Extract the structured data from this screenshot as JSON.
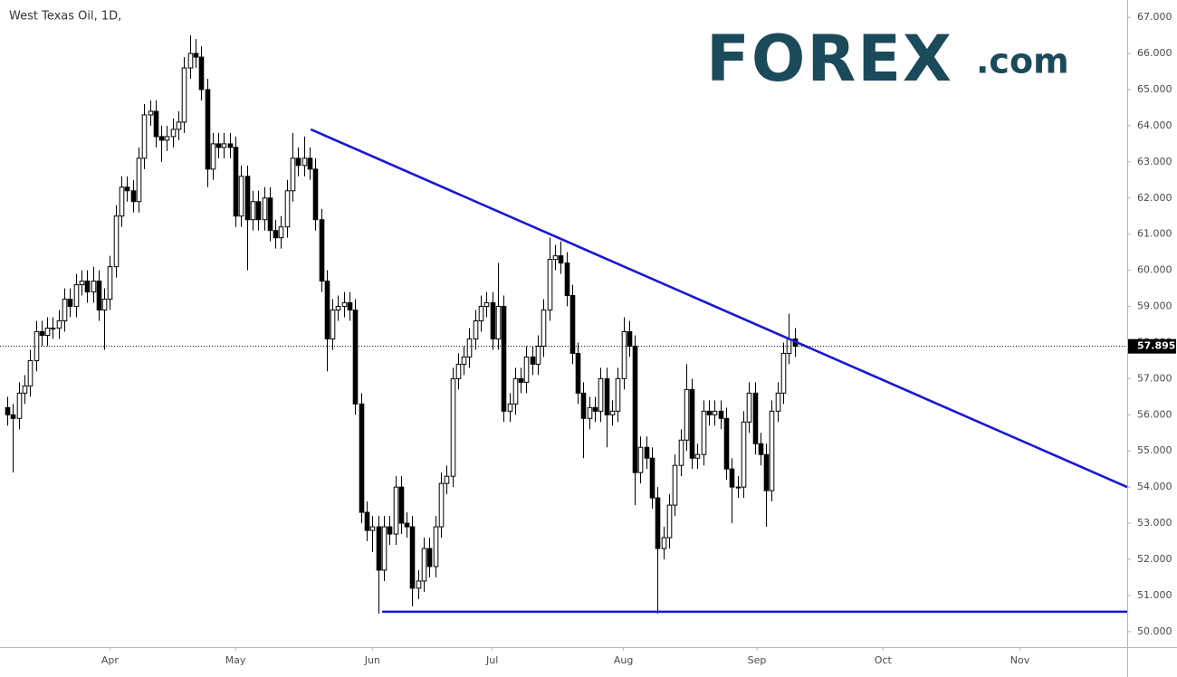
{
  "chart_data": {
    "type": "candlestick",
    "title": "West Texas Oil, 1D,",
    "logo": {
      "text": "FOREX",
      "suffix": ".com"
    },
    "xlim": [
      -1.27,
      196.3
    ],
    "xticks": [
      {
        "value": 18,
        "label": "Apr"
      },
      {
        "value": 40,
        "label": "May"
      },
      {
        "value": 64,
        "label": "Jun"
      },
      {
        "value": 85,
        "label": "Jul"
      },
      {
        "value": 108,
        "label": "Aug"
      },
      {
        "value": 131.4,
        "label": "Sep"
      },
      {
        "value": 153.5,
        "label": "Oct"
      },
      {
        "value": 177.5,
        "label": "Nov"
      }
    ],
    "ylim": [
      49.57,
      67.48
    ],
    "yticks": [
      {
        "value": 50,
        "label": "50.000"
      },
      {
        "value": 51,
        "label": "51.000"
      },
      {
        "value": 52,
        "label": "52.000"
      },
      {
        "value": 53,
        "label": "53.000"
      },
      {
        "value": 54,
        "label": "54.000"
      },
      {
        "value": 55,
        "label": "55.000"
      },
      {
        "value": 56,
        "label": "56.000"
      },
      {
        "value": 57,
        "label": "57.000"
      },
      {
        "value": 58,
        "label": "58.000"
      },
      {
        "value": 59,
        "label": "59.000"
      },
      {
        "value": 60,
        "label": "60.000"
      },
      {
        "value": 61,
        "label": "61.000"
      },
      {
        "value": 62,
        "label": "62.000"
      },
      {
        "value": 63,
        "label": "63.000"
      },
      {
        "value": 64,
        "label": "64.000"
      },
      {
        "value": 65,
        "label": "65.000"
      },
      {
        "value": 66,
        "label": "66.000"
      },
      {
        "value": 67,
        "label": "67.000"
      }
    ],
    "last_price": {
      "value": 57.895,
      "label": "57.895"
    },
    "up_color": "#ffffff",
    "down_color": "#000000",
    "open": [
      56.2,
      56.0,
      55.9,
      56.6,
      56.8,
      57.5,
      58.3,
      58.2,
      58.4,
      58.4,
      58.6,
      59.2,
      59.0,
      59.6,
      59.7,
      59.4,
      59.7,
      58.9,
      59.2,
      60.1,
      61.5,
      62.3,
      62.2,
      61.9,
      63.1,
      64.3,
      64.4,
      63.7,
      63.6,
      63.7,
      63.9,
      64.1,
      65.6,
      66.0,
      65.9,
      65.0,
      62.8,
      63.5,
      63.4,
      63.5,
      63.4,
      61.5,
      62.6,
      61.4,
      61.9,
      61.4,
      62.0,
      61.1,
      60.9,
      61.2,
      62.2,
      63.1,
      62.9,
      63.1,
      62.8,
      61.4,
      59.7,
      58.1,
      58.9,
      59.0,
      59.1,
      58.9,
      56.3,
      53.3,
      52.8,
      52.9,
      51.7,
      52.9,
      52.7,
      54.0,
      53.0,
      52.9,
      51.2,
      51.4,
      52.3,
      51.8,
      52.9,
      54.1,
      54.3,
      57.0,
      57.4,
      57.6,
      58.1,
      58.6,
      59.0,
      59.1,
      58.1,
      59.0,
      56.1,
      56.3,
      57.0,
      56.9,
      57.6,
      57.4,
      57.9,
      58.9,
      60.3,
      60.4,
      60.2,
      59.3,
      57.7,
      56.6,
      55.9,
      56.2,
      56.1,
      57.0,
      56.0,
      56.1,
      57.0,
      58.3,
      57.9,
      54.4,
      55.1,
      54.8,
      53.7,
      52.3,
      52.6,
      53.5,
      54.6,
      55.3,
      56.7,
      54.8,
      54.9,
      56.1,
      56.0,
      56.1,
      55.9,
      54.5,
      54.0,
      54.0,
      55.8,
      56.6,
      55.2,
      54.9,
      53.9,
      56.1,
      56.6,
      57.7,
      58.1
    ],
    "high": [
      56.5,
      56.3,
      56.9,
      57.1,
      57.8,
      58.6,
      58.6,
      58.7,
      58.7,
      58.9,
      59.5,
      59.5,
      59.9,
      60.0,
      60.0,
      60.1,
      60.0,
      59.5,
      60.4,
      61.8,
      62.6,
      62.6,
      62.5,
      63.4,
      64.6,
      64.7,
      64.7,
      64.0,
      64.0,
      64.2,
      64.4,
      65.9,
      66.5,
      66.4,
      66.2,
      65.3,
      63.8,
      63.8,
      63.8,
      63.8,
      63.7,
      62.9,
      62.9,
      62.2,
      62.2,
      62.3,
      62.3,
      61.4,
      61.5,
      62.5,
      63.8,
      63.4,
      63.7,
      63.4,
      63.1,
      61.7,
      60.0,
      59.2,
      59.3,
      59.4,
      59.4,
      59.2,
      56.6,
      53.6,
      53.2,
      53.2,
      53.2,
      53.2,
      54.3,
      54.3,
      53.3,
      53.2,
      51.7,
      52.6,
      52.6,
      53.2,
      54.4,
      54.6,
      57.3,
      57.7,
      57.9,
      58.4,
      58.9,
      59.3,
      59.4,
      59.4,
      60.2,
      59.3,
      56.6,
      57.3,
      57.3,
      57.9,
      57.9,
      58.2,
      59.2,
      60.9,
      60.7,
      60.8,
      60.5,
      59.6,
      58.0,
      56.9,
      56.5,
      56.5,
      57.3,
      57.3,
      56.4,
      57.3,
      58.7,
      58.6,
      58.2,
      55.4,
      55.4,
      55.1,
      54.0,
      52.9,
      53.8,
      54.9,
      55.6,
      57.4,
      57.0,
      55.2,
      56.4,
      56.4,
      56.4,
      56.4,
      56.2,
      54.8,
      54.3,
      56.1,
      56.9,
      56.9,
      55.5,
      55.2,
      56.4,
      56.9,
      58.0,
      58.8,
      58.4
    ],
    "low": [
      55.7,
      54.4,
      55.6,
      56.3,
      56.5,
      57.2,
      57.9,
      57.9,
      58.1,
      58.1,
      58.3,
      58.7,
      58.7,
      59.3,
      59.1,
      59.1,
      58.6,
      57.8,
      58.9,
      59.8,
      61.2,
      61.9,
      61.6,
      61.6,
      62.8,
      64.0,
      63.4,
      63.0,
      63.3,
      63.4,
      63.6,
      63.8,
      65.3,
      65.6,
      64.7,
      62.3,
      62.5,
      63.1,
      63.1,
      63.1,
      61.2,
      61.2,
      60.0,
      61.1,
      61.1,
      61.1,
      60.8,
      60.6,
      60.6,
      60.9,
      61.9,
      62.6,
      62.6,
      62.5,
      61.1,
      59.4,
      57.2,
      57.8,
      58.6,
      58.7,
      58.6,
      56.0,
      53.0,
      52.5,
      52.2,
      50.5,
      51.4,
      52.4,
      52.4,
      52.7,
      52.6,
      50.7,
      50.9,
      51.1,
      51.5,
      51.5,
      52.6,
      53.8,
      54.0,
      56.7,
      57.1,
      57.3,
      57.8,
      58.3,
      58.7,
      57.8,
      57.8,
      55.8,
      55.8,
      56.0,
      56.6,
      56.6,
      57.1,
      57.1,
      57.6,
      58.6,
      60.0,
      59.9,
      59.0,
      57.4,
      56.3,
      54.8,
      55.6,
      55.8,
      55.8,
      55.1,
      55.7,
      55.8,
      56.7,
      57.6,
      53.5,
      54.1,
      54.5,
      53.4,
      50.5,
      52.0,
      52.3,
      53.2,
      54.3,
      55.0,
      54.5,
      54.5,
      54.6,
      55.7,
      55.7,
      55.6,
      54.2,
      53.0,
      53.7,
      53.7,
      55.5,
      54.9,
      54.6,
      52.9,
      53.6,
      55.8,
      56.3,
      57.4,
      57.6
    ],
    "close": [
      56.0,
      55.9,
      56.6,
      56.8,
      57.5,
      58.3,
      58.2,
      58.4,
      58.4,
      58.6,
      59.2,
      59.0,
      59.6,
      59.7,
      59.4,
      59.7,
      58.9,
      59.2,
      60.1,
      61.5,
      62.3,
      62.2,
      61.9,
      63.1,
      64.3,
      64.4,
      63.7,
      63.6,
      63.7,
      63.9,
      64.1,
      65.6,
      66.0,
      65.9,
      65.0,
      62.8,
      63.5,
      63.4,
      63.5,
      63.4,
      61.5,
      62.6,
      61.4,
      61.9,
      61.4,
      62.0,
      61.1,
      60.9,
      61.2,
      62.2,
      63.1,
      62.9,
      63.1,
      62.8,
      61.4,
      59.7,
      58.1,
      58.9,
      59.0,
      59.1,
      58.9,
      56.3,
      53.3,
      52.8,
      52.9,
      51.7,
      52.9,
      52.7,
      54.0,
      53.0,
      52.9,
      51.2,
      51.4,
      52.3,
      51.8,
      52.9,
      54.1,
      54.3,
      57.0,
      57.4,
      57.6,
      58.1,
      58.6,
      59.0,
      59.1,
      58.1,
      59.0,
      56.1,
      56.3,
      57.0,
      56.9,
      57.6,
      57.4,
      57.9,
      58.9,
      60.3,
      60.4,
      60.2,
      59.3,
      57.7,
      56.6,
      55.9,
      56.2,
      56.1,
      57.0,
      56.0,
      56.1,
      57.0,
      58.3,
      57.9,
      54.4,
      55.1,
      54.8,
      53.7,
      52.3,
      52.6,
      53.5,
      54.6,
      55.3,
      56.7,
      54.8,
      54.9,
      56.1,
      56.0,
      56.1,
      55.9,
      54.5,
      54.0,
      54.0,
      55.8,
      56.6,
      55.2,
      54.9,
      53.9,
      56.1,
      56.6,
      57.7,
      58.1,
      57.895
    ],
    "trendlines": [
      {
        "color": "#1717d4",
        "x": [
          53.2,
          196.3
        ],
        "y": [
          63.9,
          54.0
        ]
      },
      {
        "color": "#1717d4",
        "x": [
          65.7,
          196.3
        ],
        "y": [
          50.55,
          50.55
        ]
      }
    ]
  }
}
